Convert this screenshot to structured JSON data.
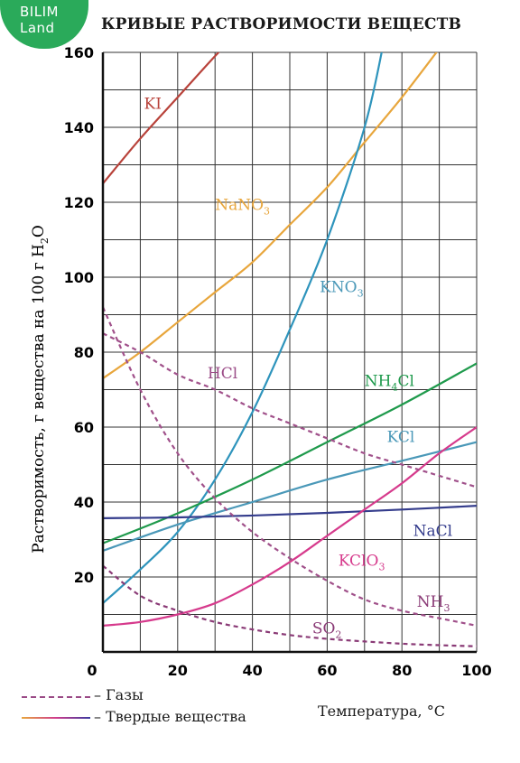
{
  "logo": {
    "line1": "BILIM",
    "line2": "Land"
  },
  "chart_data": {
    "type": "line",
    "title": "КРИВЫЕ РАСТВОРИМОСТИ ВЕЩЕСТВ",
    "xlabel": "Температура, °С",
    "ylabel": "Растворимость, г вещества на 100 г H",
    "ylabel_sub": "2",
    "ylabel_tail": "O",
    "xlim": [
      0,
      100
    ],
    "ylim": [
      0,
      160
    ],
    "xticks": [
      "0",
      "20",
      "40",
      "60",
      "80",
      "100"
    ],
    "yticks": [
      "20",
      "40",
      "60",
      "80",
      "100",
      "120",
      "140",
      "160"
    ],
    "grid": true,
    "series": [
      {
        "name": "KI",
        "sub": "",
        "tail": "",
        "kind": "solid",
        "color": "#b8423a",
        "x": [
          0,
          10,
          20,
          30,
          35
        ],
        "y": [
          125,
          137,
          148,
          159,
          164
        ]
      },
      {
        "name": "NaNO",
        "sub": "3",
        "tail": "",
        "kind": "solid",
        "color": "#e8a63c",
        "x": [
          0,
          10,
          20,
          30,
          40,
          50,
          60,
          70,
          80,
          90
        ],
        "y": [
          73,
          80,
          88,
          96,
          104,
          114,
          124,
          136,
          148,
          161
        ]
      },
      {
        "name": "KNO",
        "sub": "3",
        "tail": "",
        "kind": "solid",
        "color": "#2e94bc",
        "x": [
          0,
          10,
          20,
          30,
          40,
          50,
          60,
          70,
          75
        ],
        "y": [
          13,
          22,
          32,
          46,
          64,
          86,
          110,
          140,
          162
        ]
      },
      {
        "name": "NH",
        "sub": "4",
        "tail": "Cl",
        "kind": "solid",
        "color": "#1f9a4c",
        "x": [
          0,
          20,
          40,
          60,
          80,
          100
        ],
        "y": [
          29,
          37,
          46,
          56,
          66,
          77
        ]
      },
      {
        "name": "KCl",
        "sub": "",
        "tail": "",
        "kind": "solid",
        "color": "#4a98b8",
        "x": [
          0,
          20,
          40,
          60,
          80,
          100
        ],
        "y": [
          27,
          34,
          40,
          46,
          51,
          56
        ]
      },
      {
        "name": "NaCl",
        "sub": "",
        "tail": "",
        "kind": "solid",
        "color": "#343c8c",
        "x": [
          0,
          20,
          40,
          60,
          80,
          100
        ],
        "y": [
          35.7,
          35.9,
          36.4,
          37.1,
          38,
          39
        ]
      },
      {
        "name": "KClO",
        "sub": "3",
        "tail": "",
        "kind": "solid",
        "color": "#d63a8c",
        "x": [
          0,
          10,
          20,
          30,
          40,
          50,
          60,
          70,
          80,
          90,
          100
        ],
        "y": [
          7,
          8,
          10,
          13,
          18,
          24,
          31,
          38,
          45,
          53,
          60
        ]
      },
      {
        "name": "HCl",
        "sub": "",
        "tail": "",
        "kind": "gas",
        "color": "#a0508a",
        "x": [
          0,
          10,
          20,
          30,
          40,
          50,
          60,
          70,
          80,
          90,
          100
        ],
        "y": [
          85,
          80,
          74,
          70,
          65,
          61,
          57,
          53,
          50,
          47,
          44
        ]
      },
      {
        "name": "NH",
        "sub": "3",
        "tail": "",
        "kind": "gas",
        "color": "#a0508a",
        "x": [
          0,
          10,
          20,
          30,
          40,
          50,
          60,
          70,
          80,
          90,
          100
        ],
        "y": [
          92,
          70,
          53,
          41,
          32,
          25,
          19,
          14,
          11,
          9,
          7
        ]
      },
      {
        "name": "SO",
        "sub": "2",
        "tail": "",
        "kind": "gas",
        "color": "#8a3a76",
        "x": [
          0,
          10,
          20,
          30,
          40,
          50,
          60,
          70,
          80,
          90,
          100
        ],
        "y": [
          23,
          15,
          11,
          8,
          6,
          4.5,
          3.5,
          2.8,
          2.2,
          1.8,
          1.5
        ]
      }
    ],
    "legend": [
      {
        "kind": "gas",
        "label": "– Газы"
      },
      {
        "kind": "solid",
        "label": "– Твердые вещества"
      }
    ]
  }
}
